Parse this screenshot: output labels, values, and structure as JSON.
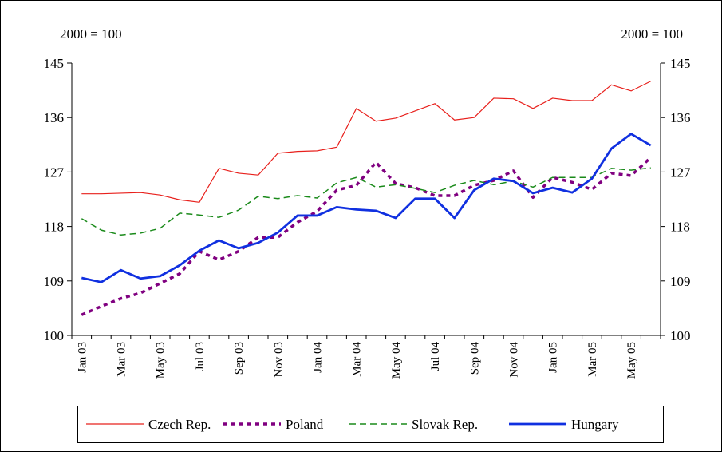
{
  "chart_data": {
    "type": "line",
    "y_unit_label": "2000 = 100",
    "y2_unit_label": "2000 = 100",
    "categories": [
      "Jan 03",
      null,
      "Mar 03",
      null,
      "May 03",
      null,
      "Jul 03",
      null,
      "Sep 03",
      null,
      "Nov 03",
      null,
      "Jan 04",
      null,
      "Mar 04",
      null,
      "May 04",
      null,
      "Jul 04",
      null,
      "Sep 04",
      null,
      "Nov 04",
      null,
      "Jan 05",
      null,
      "Mar 05",
      null,
      "May 05",
      null
    ],
    "ylim": [
      100,
      145
    ],
    "yticks": [
      100,
      109,
      118,
      127,
      136,
      145
    ],
    "y2lim": [
      100,
      145
    ],
    "y2ticks": [
      100,
      109,
      118,
      127,
      136,
      145
    ],
    "legend": "bottom",
    "series": [
      {
        "name": "Czech Rep.",
        "color": "#e8201c",
        "dash": "solid",
        "width": 1.2,
        "values": [
          123.4,
          123.4,
          123.5,
          123.6,
          123.2,
          122.4,
          122.0,
          127.6,
          126.8,
          126.5,
          130.1,
          130.4,
          130.5,
          131.1,
          137.5,
          135.4,
          135.9,
          137.1,
          138.3,
          135.6,
          136.0,
          139.2,
          139.1,
          137.5,
          139.2,
          138.8,
          138.8,
          141.4,
          140.4,
          142.0
        ]
      },
      {
        "name": "Poland",
        "color": "#800080",
        "dash": "dotted",
        "width": 3.5,
        "values": [
          103.4,
          104.8,
          106.1,
          107.0,
          108.6,
          110.2,
          113.9,
          112.5,
          113.9,
          116.2,
          116.2,
          118.7,
          120.5,
          124.0,
          124.8,
          128.6,
          125.1,
          124.4,
          123.1,
          123.1,
          124.8,
          125.6,
          127.2,
          122.8,
          126.1,
          125.3,
          124.1,
          126.8,
          126.4,
          129.4
        ]
      },
      {
        "name": "Slovak Rep.",
        "color": "#1a8a1a",
        "dash": "dashed",
        "width": 1.5,
        "values": [
          119.3,
          117.4,
          116.6,
          116.9,
          117.7,
          120.2,
          119.9,
          119.5,
          120.7,
          123.0,
          122.6,
          123.1,
          122.7,
          125.2,
          126.1,
          124.5,
          124.9,
          124.3,
          123.6,
          124.8,
          125.6,
          124.9,
          125.5,
          124.5,
          126.1,
          126.1,
          126.1,
          127.6,
          127.3,
          127.7
        ]
      },
      {
        "name": "Hungary",
        "color": "#1030e0",
        "dash": "solid",
        "width": 2.8,
        "values": [
          109.5,
          108.8,
          110.8,
          109.4,
          109.8,
          111.6,
          114.0,
          115.7,
          114.4,
          115.3,
          117.0,
          119.8,
          119.8,
          121.2,
          120.8,
          120.6,
          119.4,
          122.6,
          122.6,
          119.4,
          124.0,
          125.9,
          125.5,
          123.5,
          124.4,
          123.6,
          125.9,
          130.9,
          133.3,
          131.4
        ]
      }
    ]
  }
}
